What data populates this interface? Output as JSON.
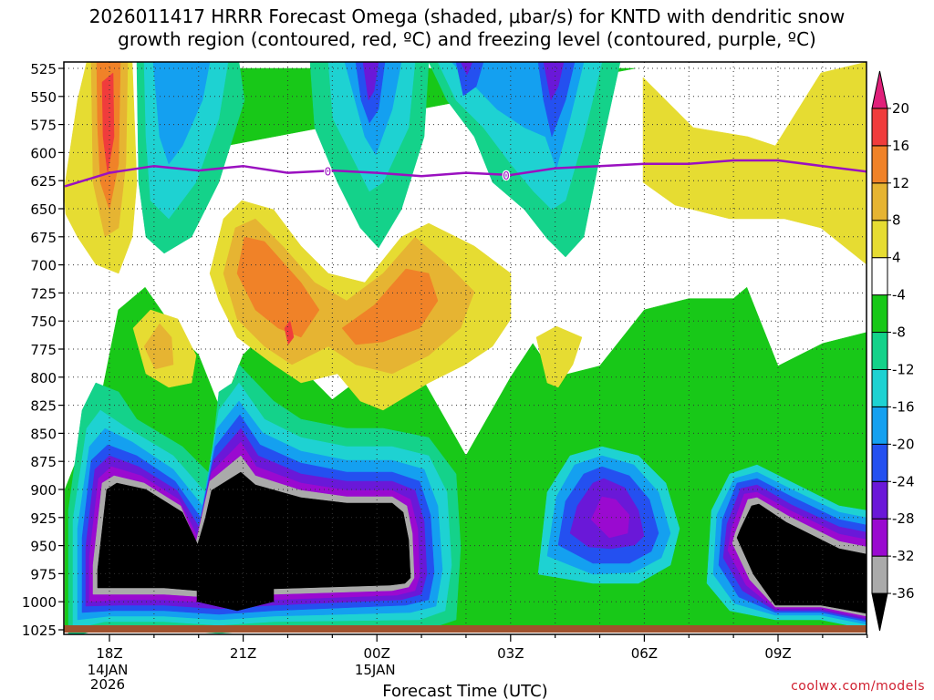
{
  "title": {
    "line1": "2026011417 HRRR Forecast Omega (shaded, μbar/s) for KNTD with dendritic snow",
    "line2": "growth region (contoured, red, ºC) and freezing level (contoured, purple, ºC)"
  },
  "credit": "coolwx.com/models",
  "chart_data": {
    "type": "heatmap",
    "title": "2026011417 HRRR Forecast Omega (shaded, μbar/s) for KNTD with dendritic snow growth region (contoured, red, ºC) and freezing level (contoured, purple, ºC)",
    "xlabel": "Forecast Time (UTC)",
    "ylabel": "",
    "x_ticks": [
      {
        "hour": 18,
        "label": "18Z",
        "sub1": "14JAN",
        "sub2": "2026"
      },
      {
        "hour": 21,
        "label": "21Z",
        "sub1": "",
        "sub2": ""
      },
      {
        "hour": 24,
        "label": "00Z",
        "sub1": "15JAN",
        "sub2": ""
      },
      {
        "hour": 27,
        "label": "03Z",
        "sub1": "",
        "sub2": ""
      },
      {
        "hour": 30,
        "label": "06Z",
        "sub1": "",
        "sub2": ""
      },
      {
        "hour": 33,
        "label": "09Z",
        "sub1": "",
        "sub2": ""
      }
    ],
    "x_range_hours": [
      17,
      35
    ],
    "y_axis": "pressure (hPa), inverted",
    "y_ticks": [
      525,
      550,
      575,
      600,
      625,
      650,
      675,
      700,
      725,
      750,
      775,
      800,
      825,
      850,
      875,
      900,
      925,
      950,
      975,
      1000,
      1025
    ],
    "y_range": [
      525,
      1025
    ],
    "grid": true,
    "colorbar": {
      "labels": [
        "20",
        "16",
        "12",
        "8",
        "4",
        "-4",
        "-8",
        "-12",
        "-16",
        "-20",
        "-24",
        "-28",
        "-32",
        "-36"
      ],
      "bins": [
        {
          "range": "<-36",
          "color": "#000000"
        },
        {
          "range": "-36..-32",
          "color": "#aaaaaa"
        },
        {
          "range": "-32..-28",
          "color": "#9a0ad0"
        },
        {
          "range": "-28..-24",
          "color": "#6a18d8"
        },
        {
          "range": "-24..-20",
          "color": "#2450f0"
        },
        {
          "range": "-20..-16",
          "color": "#14a0f0"
        },
        {
          "range": "-16..-12",
          "color": "#1ed2d2"
        },
        {
          "range": "-12..-8",
          "color": "#14d28a"
        },
        {
          "range": "-8..-4",
          "color": "#18c818"
        },
        {
          "range": "-4..4",
          "color": "#ffffff"
        },
        {
          "range": "4..8",
          "color": "#e6dc32"
        },
        {
          "range": "8..12",
          "color": "#e6b432"
        },
        {
          "range": "12..16",
          "color": "#f08228"
        },
        {
          "range": "16..20",
          "color": "#f03c3c"
        },
        {
          "range": ">20",
          "color": "#e0207a"
        }
      ]
    },
    "freezing_level": {
      "label": "0",
      "label_hours": [
        22.9,
        26.9
      ],
      "color": "#9a10c0",
      "points": [
        [
          17,
          630
        ],
        [
          18,
          618
        ],
        [
          19,
          612
        ],
        [
          20,
          616
        ],
        [
          21,
          612
        ],
        [
          22,
          618
        ],
        [
          23,
          616
        ],
        [
          24,
          618
        ],
        [
          25,
          621
        ],
        [
          26,
          618
        ],
        [
          27,
          620
        ],
        [
          28,
          614
        ],
        [
          29,
          612
        ],
        [
          30,
          610
        ],
        [
          31,
          610
        ],
        [
          32,
          607
        ],
        [
          33,
          607
        ],
        [
          34,
          612
        ],
        [
          35,
          617
        ]
      ]
    },
    "omega_regions": [
      {
        "color": "#18c818",
        "hours": [
          19.0,
          19.6,
          20.5,
          21.0,
          21.6,
          23.0,
          23.4,
          24.0,
          24.4,
          24.4,
          25.0,
          25.8,
          26.2,
          26.6,
          26.8,
          27.3,
          27.5,
          28.0,
          28.5,
          29.0,
          29.8,
          19.8,
          19.0
        ],
        "pressures": [
          525,
          525,
          525,
          525,
          525,
          525,
          525,
          525,
          525,
          525,
          525,
          525,
          525,
          525,
          525,
          525,
          525,
          525,
          525,
          525,
          525,
          600,
          525
        ]
      },
      {
        "color": "#18c818",
        "hours": [
          17.0,
          17.8,
          18.2,
          18.8,
          19.5,
          20.0,
          20.5,
          21.0,
          21.5,
          22.0,
          23.0,
          24.0,
          24.5,
          25.0,
          26.0,
          27.0,
          27.5,
          28.0,
          29.0,
          30.0,
          30.5,
          31.0,
          32.0,
          32.3,
          33.0,
          34.0,
          35.0,
          35.0,
          17.0
        ],
        "pressures": [
          900,
          820,
          740,
          720,
          760,
          780,
          830,
          780,
          760,
          780,
          820,
          790,
          800,
          800,
          870,
          800,
          770,
          800,
          790,
          740,
          735,
          730,
          730,
          720,
          790,
          770,
          760,
          1025,
          1025
        ]
      }
    ],
    "snow_growth_region_color": "#ff0000"
  }
}
